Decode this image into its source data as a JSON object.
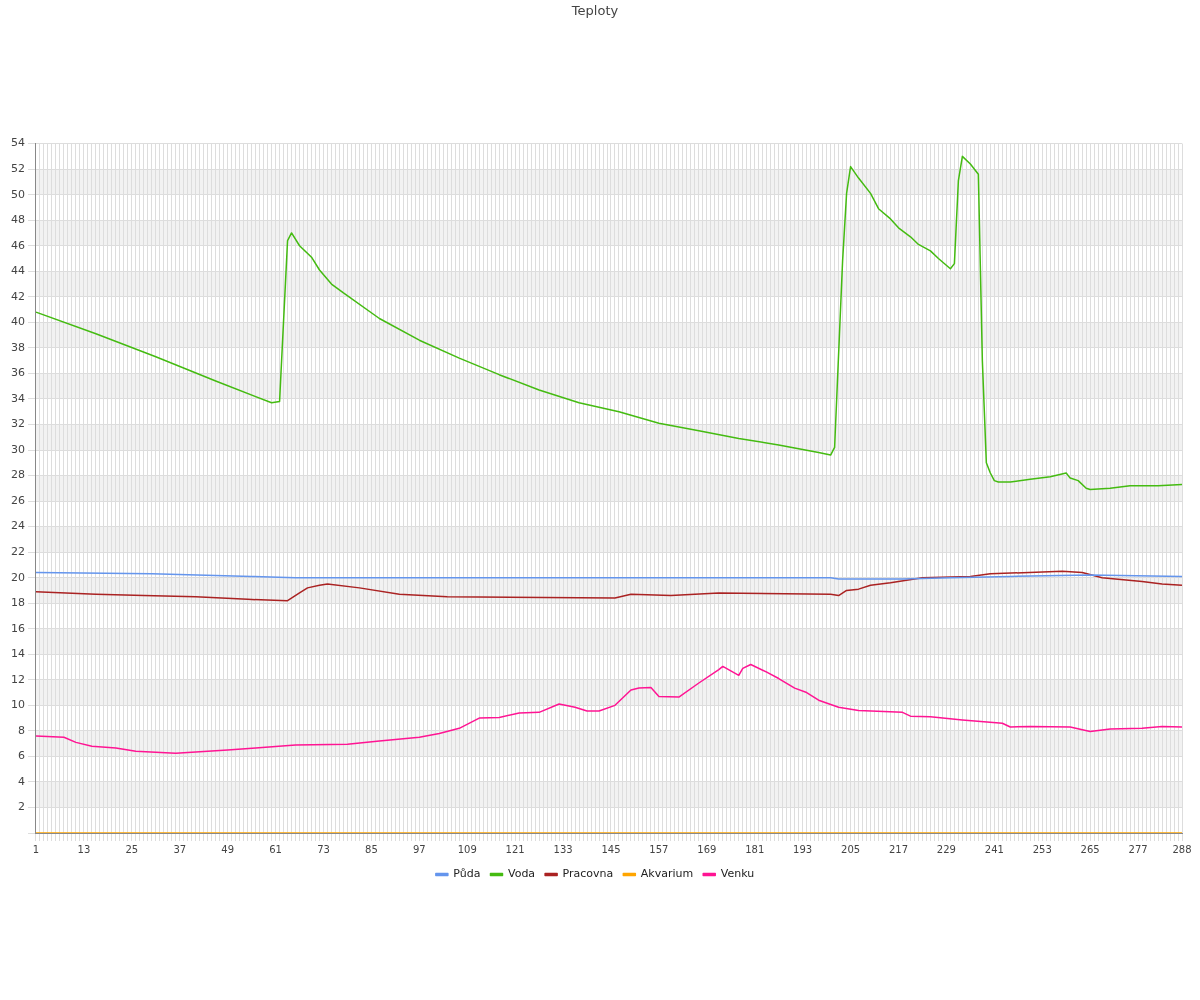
{
  "chart_data": {
    "type": "line",
    "title": "Teploty",
    "xlim": [
      1,
      288
    ],
    "xticks": [
      1,
      {
        "value": 2,
        "label": null
      },
      {
        "value": 3,
        "label": null
      },
      {
        "value": 4,
        "label": null
      },
      {
        "value": 5,
        "label": null
      },
      {
        "value": 6,
        "label": null
      },
      {
        "value": 7,
        "label": null
      },
      {
        "value": 8,
        "label": null
      },
      {
        "value": 9,
        "label": null
      },
      {
        "value": 10,
        "label": null
      },
      {
        "value": 11,
        "label": null
      },
      {
        "value": 12,
        "label": null
      },
      13,
      {
        "value": 14,
        "label": null
      },
      {
        "value": 15,
        "label": null
      },
      {
        "value": 16,
        "label": null
      },
      {
        "value": 17,
        "label": null
      },
      {
        "value": 18,
        "label": null
      },
      {
        "value": 19,
        "label": null
      },
      {
        "value": 20,
        "label": null
      },
      {
        "value": 21,
        "label": null
      },
      {
        "value": 22,
        "label": null
      },
      {
        "value": 23,
        "label": null
      },
      {
        "value": 24,
        "label": null
      },
      25,
      {
        "value": 26,
        "label": null
      },
      {
        "value": 27,
        "label": null
      },
      {
        "value": 28,
        "label": null
      },
      {
        "value": 29,
        "label": null
      },
      {
        "value": 30,
        "label": null
      },
      {
        "value": 31,
        "label": null
      },
      {
        "value": 32,
        "label": null
      },
      {
        "value": 33,
        "label": null
      },
      {
        "value": 34,
        "label": null
      },
      {
        "value": 35,
        "label": null
      },
      {
        "value": 36,
        "label": null
      },
      37,
      {
        "value": 38,
        "label": null
      },
      {
        "value": 39,
        "label": null
      },
      {
        "value": 40,
        "label": null
      },
      {
        "value": 41,
        "label": null
      },
      {
        "value": 42,
        "label": null
      },
      {
        "value": 43,
        "label": null
      },
      {
        "value": 44,
        "label": null
      },
      {
        "value": 45,
        "label": null
      },
      {
        "value": 46,
        "label": null
      },
      {
        "value": 47,
        "label": null
      },
      {
        "value": 48,
        "label": null
      },
      49,
      {
        "value": 50,
        "label": null
      },
      {
        "value": 51,
        "label": null
      },
      {
        "value": 52,
        "label": null
      },
      {
        "value": 53,
        "label": null
      },
      {
        "value": 54,
        "label": null
      },
      {
        "value": 55,
        "label": null
      },
      {
        "value": 56,
        "label": null
      },
      {
        "value": 57,
        "label": null
      },
      {
        "value": 58,
        "label": null
      },
      {
        "value": 59,
        "label": null
      },
      {
        "value": 60,
        "label": null
      },
      61,
      {
        "value": 62,
        "label": null
      },
      {
        "value": 63,
        "label": null
      },
      {
        "value": 64,
        "label": null
      },
      {
        "value": 65,
        "label": null
      },
      {
        "value": 66,
        "label": null
      },
      {
        "value": 67,
        "label": null
      },
      {
        "value": 68,
        "label": null
      },
      {
        "value": 69,
        "label": null
      },
      {
        "value": 70,
        "label": null
      },
      {
        "value": 71,
        "label": null
      },
      {
        "value": 72,
        "label": null
      },
      73,
      {
        "value": 74,
        "label": null
      },
      {
        "value": 75,
        "label": null
      },
      {
        "value": 76,
        "label": null
      },
      {
        "value": 77,
        "label": null
      },
      {
        "value": 78,
        "label": null
      },
      {
        "value": 79,
        "label": null
      },
      {
        "value": 80,
        "label": null
      },
      {
        "value": 81,
        "label": null
      },
      {
        "value": 82,
        "label": null
      },
      {
        "value": 83,
        "label": null
      },
      {
        "value": 84,
        "label": null
      },
      85,
      {
        "value": 86,
        "label": null
      },
      {
        "value": 87,
        "label": null
      },
      {
        "value": 88,
        "label": null
      },
      {
        "value": 89,
        "label": null
      },
      {
        "value": 90,
        "label": null
      },
      {
        "value": 91,
        "label": null
      },
      {
        "value": 92,
        "label": null
      },
      {
        "value": 93,
        "label": null
      },
      {
        "value": 94,
        "label": null
      },
      {
        "value": 95,
        "label": null
      },
      {
        "value": 96,
        "label": null
      },
      97,
      {
        "value": 98,
        "label": null
      },
      {
        "value": 99,
        "label": null
      },
      {
        "value": 100,
        "label": null
      },
      {
        "value": 101,
        "label": null
      },
      {
        "value": 102,
        "label": null
      },
      {
        "value": 103,
        "label": null
      },
      {
        "value": 104,
        "label": null
      },
      {
        "value": 105,
        "label": null
      },
      {
        "value": 106,
        "label": null
      },
      {
        "value": 107,
        "label": null
      },
      {
        "value": 108,
        "label": null
      },
      109,
      {
        "value": 110,
        "label": null
      },
      {
        "value": 111,
        "label": null
      },
      {
        "value": 112,
        "label": null
      },
      {
        "value": 113,
        "label": null
      },
      {
        "value": 114,
        "label": null
      },
      {
        "value": 115,
        "label": null
      },
      {
        "value": 116,
        "label": null
      },
      {
        "value": 117,
        "label": null
      },
      {
        "value": 118,
        "label": null
      },
      {
        "value": 119,
        "label": null
      },
      {
        "value": 120,
        "label": null
      },
      121,
      {
        "value": 122,
        "label": null
      },
      {
        "value": 123,
        "label": null
      },
      {
        "value": 124,
        "label": null
      },
      {
        "value": 125,
        "label": null
      },
      {
        "value": 126,
        "label": null
      },
      {
        "value": 127,
        "label": null
      },
      {
        "value": 128,
        "label": null
      },
      {
        "value": 129,
        "label": null
      },
      {
        "value": 130,
        "label": null
      },
      {
        "value": 131,
        "label": null
      },
      {
        "value": 132,
        "label": null
      },
      133,
      {
        "value": 134,
        "label": null
      },
      {
        "value": 135,
        "label": null
      },
      {
        "value": 136,
        "label": null
      },
      {
        "value": 137,
        "label": null
      },
      {
        "value": 138,
        "label": null
      },
      {
        "value": 139,
        "label": null
      },
      {
        "value": 140,
        "label": null
      },
      {
        "value": 141,
        "label": null
      },
      {
        "value": 142,
        "label": null
      },
      {
        "value": 143,
        "label": null
      },
      {
        "value": 144,
        "label": null
      },
      145,
      {
        "value": 146,
        "label": null
      },
      {
        "value": 147,
        "label": null
      },
      {
        "value": 148,
        "label": null
      },
      {
        "value": 149,
        "label": null
      },
      {
        "value": 150,
        "label": null
      },
      {
        "value": 151,
        "label": null
      },
      {
        "value": 152,
        "label": null
      },
      {
        "value": 153,
        "label": null
      },
      {
        "value": 154,
        "label": null
      },
      {
        "value": 155,
        "label": null
      },
      {
        "value": 156,
        "label": null
      },
      157,
      {
        "value": 158,
        "label": null
      },
      {
        "value": 159,
        "label": null
      },
      {
        "value": 160,
        "label": null
      },
      {
        "value": 161,
        "label": null
      },
      {
        "value": 162,
        "label": null
      },
      {
        "value": 163,
        "label": null
      },
      {
        "value": 164,
        "label": null
      },
      {
        "value": 165,
        "label": null
      },
      {
        "value": 166,
        "label": null
      },
      {
        "value": 167,
        "label": null
      },
      {
        "value": 168,
        "label": null
      },
      169,
      {
        "value": 170,
        "label": null
      },
      {
        "value": 171,
        "label": null
      },
      {
        "value": 172,
        "label": null
      },
      {
        "value": 173,
        "label": null
      },
      {
        "value": 174,
        "label": null
      },
      {
        "value": 175,
        "label": null
      },
      {
        "value": 176,
        "label": null
      },
      {
        "value": 177,
        "label": null
      },
      {
        "value": 178,
        "label": null
      },
      {
        "value": 179,
        "label": null
      },
      {
        "value": 180,
        "label": null
      },
      181,
      {
        "value": 182,
        "label": null
      },
      {
        "value": 183,
        "label": null
      },
      {
        "value": 184,
        "label": null
      },
      {
        "value": 185,
        "label": null
      },
      {
        "value": 186,
        "label": null
      },
      {
        "value": 187,
        "label": null
      },
      {
        "value": 188,
        "label": null
      },
      {
        "value": 189,
        "label": null
      },
      {
        "value": 190,
        "label": null
      },
      {
        "value": 191,
        "label": null
      },
      {
        "value": 192,
        "label": null
      },
      193,
      {
        "value": 194,
        "label": null
      },
      {
        "value": 195,
        "label": null
      },
      {
        "value": 196,
        "label": null
      },
      {
        "value": 197,
        "label": null
      },
      {
        "value": 198,
        "label": null
      },
      {
        "value": 199,
        "label": null
      },
      {
        "value": 200,
        "label": null
      },
      {
        "value": 201,
        "label": null
      },
      {
        "value": 202,
        "label": null
      },
      {
        "value": 203,
        "label": null
      },
      {
        "value": 204,
        "label": null
      },
      205,
      {
        "value": 206,
        "label": null
      },
      {
        "value": 207,
        "label": null
      },
      {
        "value": 208,
        "label": null
      },
      {
        "value": 209,
        "label": null
      },
      {
        "value": 210,
        "label": null
      },
      {
        "value": 211,
        "label": null
      },
      {
        "value": 212,
        "label": null
      },
      {
        "value": 213,
        "label": null
      },
      {
        "value": 214,
        "label": null
      },
      {
        "value": 215,
        "label": null
      },
      {
        "value": 216,
        "label": null
      },
      217,
      {
        "value": 218,
        "label": null
      },
      {
        "value": 219,
        "label": null
      },
      {
        "value": 220,
        "label": null
      },
      {
        "value": 221,
        "label": null
      },
      {
        "value": 222,
        "label": null
      },
      {
        "value": 223,
        "label": null
      },
      {
        "value": 224,
        "label": null
      },
      {
        "value": 225,
        "label": null
      },
      {
        "value": 226,
        "label": null
      },
      {
        "value": 227,
        "label": null
      },
      {
        "value": 228,
        "label": null
      },
      229,
      {
        "value": 230,
        "label": null
      },
      {
        "value": 231,
        "label": null
      },
      {
        "value": 232,
        "label": null
      },
      {
        "value": 233,
        "label": null
      },
      {
        "value": 234,
        "label": null
      },
      {
        "value": 235,
        "label": null
      },
      {
        "value": 236,
        "label": null
      },
      {
        "value": 237,
        "label": null
      },
      {
        "value": 238,
        "label": null
      },
      {
        "value": 239,
        "label": null
      },
      {
        "value": 240,
        "label": null
      },
      241,
      {
        "value": 242,
        "label": null
      },
      {
        "value": 243,
        "label": null
      },
      {
        "value": 244,
        "label": null
      },
      {
        "value": 245,
        "label": null
      },
      {
        "value": 246,
        "label": null
      },
      {
        "value": 247,
        "label": null
      },
      {
        "value": 248,
        "label": null
      },
      {
        "value": 249,
        "label": null
      },
      {
        "value": 250,
        "label": null
      },
      {
        "value": 251,
        "label": null
      },
      {
        "value": 252,
        "label": null
      },
      253,
      {
        "value": 254,
        "label": null
      },
      {
        "value": 255,
        "label": null
      },
      {
        "value": 256,
        "label": null
      },
      {
        "value": 257,
        "label": null
      },
      {
        "value": 258,
        "label": null
      },
      {
        "value": 259,
        "label": null
      },
      {
        "value": 260,
        "label": null
      },
      {
        "value": 261,
        "label": null
      },
      {
        "value": 262,
        "label": null
      },
      {
        "value": 263,
        "label": null
      },
      {
        "value": 264,
        "label": null
      },
      265,
      {
        "value": 266,
        "label": null
      },
      {
        "value": 267,
        "label": null
      },
      {
        "value": 268,
        "label": null
      },
      {
        "value": 269,
        "label": null
      },
      {
        "value": 270,
        "label": null
      },
      {
        "value": 271,
        "label": null
      },
      {
        "value": 272,
        "label": null
      },
      {
        "value": 273,
        "label": null
      },
      {
        "value": 274,
        "label": null
      },
      {
        "value": 275,
        "label": null
      },
      {
        "value": 276,
        "label": null
      },
      277,
      {
        "value": 278,
        "label": null
      },
      {
        "value": 279,
        "label": null
      },
      {
        "value": 280,
        "label": null
      },
      {
        "value": 281,
        "label": null
      },
      {
        "value": 282,
        "label": null
      },
      {
        "value": 283,
        "label": null
      },
      {
        "value": 284,
        "label": null
      },
      {
        "value": 285,
        "label": null
      },
      {
        "value": 286,
        "label": null
      },
      {
        "value": 287,
        "label": null
      },
      288
    ],
    "ylim": [
      0,
      54
    ],
    "yticks": [
      {
        "value": 0,
        "label": null
      },
      2,
      4,
      6,
      8,
      10,
      12,
      14,
      16,
      18,
      20,
      22,
      24,
      26,
      28,
      30,
      32,
      34,
      36,
      38,
      40,
      42,
      44,
      46,
      48,
      50,
      52,
      54
    ],
    "grid": true,
    "legend": "bottom",
    "marker": "none",
    "line_style": "solid",
    "series": [
      {
        "name": "Půda",
        "color": "#6495ed",
        "x": [
          1,
          30,
          55,
          66,
          140,
          200,
          202,
          218,
          230,
          245,
          265,
          288
        ],
        "values": [
          20.4,
          20.3,
          20.1,
          20.0,
          20.0,
          20.0,
          19.9,
          19.9,
          20.0,
          20.1,
          20.2,
          20.1
        ]
      },
      {
        "name": "Voda",
        "color": "#44bb11",
        "x": [
          1,
          16,
          31,
          46,
          60,
          62,
          64,
          65,
          67,
          70,
          72,
          75,
          78,
          87,
          97,
          107,
          117,
          127,
          137,
          147,
          157,
          167,
          177,
          187,
          197,
          200,
          201,
          203,
          204,
          205,
          207,
          210,
          212,
          215,
          217,
          220,
          222,
          225,
          227,
          230,
          231,
          232,
          233,
          235,
          237,
          238,
          239,
          240,
          241,
          242,
          245,
          250,
          255,
          259,
          260,
          262,
          264,
          265,
          270,
          275,
          282,
          288
        ],
        "values": [
          40.8,
          39.1,
          37.3,
          35.4,
          33.7,
          33.8,
          46.4,
          47.0,
          46.0,
          45.1,
          44.1,
          43.0,
          42.3,
          40.3,
          38.6,
          37.2,
          35.9,
          34.7,
          33.7,
          33.0,
          32.1,
          31.5,
          30.9,
          30.4,
          29.8,
          29.6,
          30.2,
          44.8,
          50.1,
          52.2,
          51.3,
          50.1,
          48.9,
          48.1,
          47.4,
          46.7,
          46.1,
          45.6,
          45.0,
          44.2,
          44.6,
          51.1,
          53.0,
          52.4,
          51.6,
          37.0,
          29.0,
          28.2,
          27.6,
          27.5,
          27.5,
          27.7,
          27.9,
          28.2,
          27.8,
          27.6,
          27.0,
          26.9,
          27.0,
          27.2,
          27.2,
          27.3
        ]
      },
      {
        "name": "Pracovna",
        "color": "#aa2222",
        "x": [
          1,
          16,
          28,
          41,
          54,
          64,
          67,
          69,
          72,
          74,
          82,
          92,
          104,
          146,
          150,
          160,
          172,
          200,
          202,
          204,
          207,
          210,
          215,
          223,
          235,
          240,
          258,
          263,
          268,
          278,
          283,
          288
        ],
        "values": [
          18.9,
          18.7,
          18.6,
          18.5,
          18.3,
          18.2,
          18.8,
          19.2,
          19.4,
          19.5,
          19.2,
          18.7,
          18.5,
          18.4,
          18.7,
          18.6,
          18.8,
          18.7,
          18.6,
          19.0,
          19.1,
          19.4,
          19.6,
          20.0,
          20.1,
          20.3,
          20.5,
          20.4,
          20.0,
          19.7,
          19.5,
          19.4
        ]
      },
      {
        "name": "Akvarium",
        "color": "#ffa500",
        "x": [
          1,
          288
        ],
        "values": [
          0,
          0
        ]
      },
      {
        "name": "Venku",
        "color": "#ff1493",
        "x": [
          1,
          8,
          11,
          15,
          21,
          26,
          36,
          41,
          49,
          56,
          66,
          79,
          87,
          97,
          102,
          107,
          112,
          117,
          122,
          127,
          132,
          136,
          139,
          142,
          146,
          150,
          152,
          155,
          157,
          162,
          167,
          172,
          173,
          177,
          178,
          180,
          184,
          187,
          191,
          194,
          197,
          202,
          207,
          218,
          220,
          225,
          233,
          243,
          245,
          250,
          260,
          265,
          270,
          278,
          283,
          288
        ],
        "values": [
          7.6,
          7.5,
          7.1,
          6.8,
          6.65,
          6.4,
          6.25,
          6.35,
          6.5,
          6.65,
          6.9,
          6.95,
          7.2,
          7.5,
          7.8,
          8.2,
          9.0,
          9.05,
          9.4,
          9.45,
          10.1,
          9.85,
          9.55,
          9.55,
          10.0,
          11.2,
          11.35,
          11.4,
          10.7,
          10.65,
          11.75,
          12.8,
          13.05,
          12.35,
          12.9,
          13.2,
          12.6,
          12.1,
          11.35,
          11.0,
          10.4,
          9.85,
          9.6,
          9.45,
          9.15,
          9.1,
          8.85,
          8.6,
          8.3,
          8.35,
          8.3,
          7.95,
          8.15,
          8.2,
          8.35,
          8.3
        ]
      }
    ]
  }
}
